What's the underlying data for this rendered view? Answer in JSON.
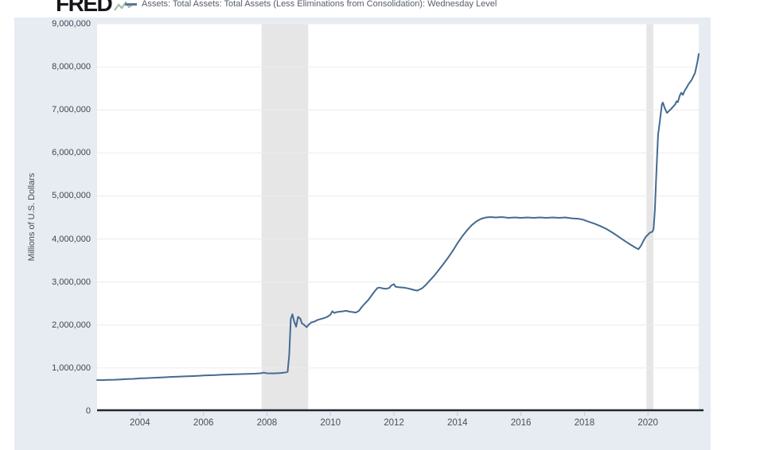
{
  "header": {
    "logo_text": "FRED",
    "legend_label": "Assets: Total Assets: Total Assets (Less Eliminations from Consolidation): Wednesday Level"
  },
  "colors": {
    "line": "#456a93",
    "legend_dash": "#5b7795",
    "recession_band": "#e6e6e6",
    "grid": "#ececec",
    "axis": "#24272b",
    "tick": "#c2c8cf",
    "chart_background": "#e7ecf3",
    "plot_background": "#ffffff",
    "logo": "#14161a"
  },
  "chart_data": {
    "type": "line",
    "title": "Assets: Total Assets: Total Assets (Less Eliminations from Consolidation): Wednesday Level",
    "xlabel": "",
    "ylabel": "Millions of U.S. Dollars",
    "xlim": [
      2002.65,
      2021.6
    ],
    "ylim": [
      0,
      9000000
    ],
    "x_ticks": [
      2004,
      2006,
      2008,
      2010,
      2012,
      2014,
      2016,
      2018,
      2020
    ],
    "y_ticks": [
      0,
      1000000,
      2000000,
      3000000,
      4000000,
      5000000,
      6000000,
      7000000,
      8000000,
      9000000
    ],
    "grid": "horizontal",
    "legend_position": "top",
    "recession_bands": [
      [
        2007.83,
        2009.3
      ],
      [
        2019.95,
        2020.17
      ]
    ],
    "series": [
      {
        "name": "Assets: Total Assets: Total Assets (Less Eliminations from Consolidation): Wednesday Level",
        "color": "#456a93",
        "points": [
          [
            2002.65,
            720000
          ],
          [
            2002.8,
            718000
          ],
          [
            2003.0,
            724000
          ],
          [
            2003.2,
            728000
          ],
          [
            2003.4,
            735000
          ],
          [
            2003.6,
            742000
          ],
          [
            2003.8,
            748000
          ],
          [
            2004.0,
            760000
          ],
          [
            2004.2,
            766000
          ],
          [
            2004.4,
            772000
          ],
          [
            2004.6,
            778000
          ],
          [
            2004.8,
            786000
          ],
          [
            2005.0,
            795000
          ],
          [
            2005.2,
            800000
          ],
          [
            2005.4,
            806000
          ],
          [
            2005.6,
            812000
          ],
          [
            2005.8,
            818000
          ],
          [
            2006.0,
            826000
          ],
          [
            2006.2,
            832000
          ],
          [
            2006.4,
            838000
          ],
          [
            2006.6,
            844000
          ],
          [
            2006.8,
            850000
          ],
          [
            2007.0,
            856000
          ],
          [
            2007.2,
            860000
          ],
          [
            2007.4,
            864000
          ],
          [
            2007.6,
            868000
          ],
          [
            2007.8,
            878000
          ],
          [
            2007.9,
            892000
          ],
          [
            2008.0,
            878000
          ],
          [
            2008.2,
            876000
          ],
          [
            2008.4,
            884000
          ],
          [
            2008.55,
            894000
          ],
          [
            2008.65,
            910000
          ],
          [
            2008.7,
            1300000
          ],
          [
            2008.75,
            2140000
          ],
          [
            2008.8,
            2250000
          ],
          [
            2008.86,
            2080000
          ],
          [
            2008.92,
            1960000
          ],
          [
            2008.98,
            2190000
          ],
          [
            2009.05,
            2150000
          ],
          [
            2009.1,
            2040000
          ],
          [
            2009.18,
            2000000
          ],
          [
            2009.25,
            1950000
          ],
          [
            2009.32,
            2010000
          ],
          [
            2009.4,
            2060000
          ],
          [
            2009.5,
            2080000
          ],
          [
            2009.6,
            2120000
          ],
          [
            2009.7,
            2140000
          ],
          [
            2009.8,
            2160000
          ],
          [
            2009.9,
            2190000
          ],
          [
            2010.0,
            2240000
          ],
          [
            2010.06,
            2320000
          ],
          [
            2010.12,
            2280000
          ],
          [
            2010.2,
            2300000
          ],
          [
            2010.3,
            2310000
          ],
          [
            2010.4,
            2320000
          ],
          [
            2010.5,
            2330000
          ],
          [
            2010.6,
            2310000
          ],
          [
            2010.7,
            2300000
          ],
          [
            2010.8,
            2290000
          ],
          [
            2010.9,
            2330000
          ],
          [
            2011.0,
            2430000
          ],
          [
            2011.1,
            2510000
          ],
          [
            2011.2,
            2590000
          ],
          [
            2011.3,
            2690000
          ],
          [
            2011.4,
            2790000
          ],
          [
            2011.48,
            2860000
          ],
          [
            2011.55,
            2870000
          ],
          [
            2011.65,
            2850000
          ],
          [
            2011.75,
            2840000
          ],
          [
            2011.85,
            2860000
          ],
          [
            2011.92,
            2920000
          ],
          [
            2012.0,
            2950000
          ],
          [
            2012.05,
            2890000
          ],
          [
            2012.15,
            2880000
          ],
          [
            2012.3,
            2870000
          ],
          [
            2012.45,
            2850000
          ],
          [
            2012.55,
            2830000
          ],
          [
            2012.65,
            2810000
          ],
          [
            2012.72,
            2800000
          ],
          [
            2012.8,
            2820000
          ],
          [
            2012.9,
            2860000
          ],
          [
            2013.0,
            2930000
          ],
          [
            2013.1,
            3010000
          ],
          [
            2013.25,
            3130000
          ],
          [
            2013.4,
            3270000
          ],
          [
            2013.55,
            3410000
          ],
          [
            2013.7,
            3560000
          ],
          [
            2013.85,
            3720000
          ],
          [
            2014.0,
            3900000
          ],
          [
            2014.15,
            4060000
          ],
          [
            2014.3,
            4200000
          ],
          [
            2014.45,
            4320000
          ],
          [
            2014.6,
            4410000
          ],
          [
            2014.75,
            4470000
          ],
          [
            2014.9,
            4500000
          ],
          [
            2015.05,
            4510000
          ],
          [
            2015.2,
            4500000
          ],
          [
            2015.4,
            4510000
          ],
          [
            2015.6,
            4490000
          ],
          [
            2015.8,
            4500000
          ],
          [
            2016.0,
            4490000
          ],
          [
            2016.2,
            4500000
          ],
          [
            2016.4,
            4490000
          ],
          [
            2016.6,
            4500000
          ],
          [
            2016.8,
            4490000
          ],
          [
            2017.0,
            4500000
          ],
          [
            2017.2,
            4490000
          ],
          [
            2017.4,
            4500000
          ],
          [
            2017.6,
            4480000
          ],
          [
            2017.8,
            4470000
          ],
          [
            2017.95,
            4450000
          ],
          [
            2018.1,
            4410000
          ],
          [
            2018.3,
            4360000
          ],
          [
            2018.5,
            4300000
          ],
          [
            2018.7,
            4230000
          ],
          [
            2018.9,
            4140000
          ],
          [
            2019.1,
            4040000
          ],
          [
            2019.3,
            3940000
          ],
          [
            2019.45,
            3870000
          ],
          [
            2019.6,
            3800000
          ],
          [
            2019.7,
            3760000
          ],
          [
            2019.78,
            3840000
          ],
          [
            2019.86,
            3960000
          ],
          [
            2019.93,
            4050000
          ],
          [
            2020.0,
            4100000
          ],
          [
            2020.07,
            4150000
          ],
          [
            2020.14,
            4170000
          ],
          [
            2020.18,
            4240000
          ],
          [
            2020.22,
            4680000
          ],
          [
            2020.27,
            5600000
          ],
          [
            2020.32,
            6420000
          ],
          [
            2020.38,
            6760000
          ],
          [
            2020.44,
            7130000
          ],
          [
            2020.47,
            7170000
          ],
          [
            2020.53,
            7040000
          ],
          [
            2020.6,
            6930000
          ],
          [
            2020.67,
            6980000
          ],
          [
            2020.74,
            7030000
          ],
          [
            2020.8,
            7080000
          ],
          [
            2020.86,
            7130000
          ],
          [
            2020.9,
            7200000
          ],
          [
            2020.94,
            7180000
          ],
          [
            2021.0,
            7330000
          ],
          [
            2021.05,
            7400000
          ],
          [
            2021.1,
            7350000
          ],
          [
            2021.16,
            7450000
          ],
          [
            2021.22,
            7520000
          ],
          [
            2021.28,
            7600000
          ],
          [
            2021.33,
            7650000
          ],
          [
            2021.38,
            7700000
          ],
          [
            2021.43,
            7780000
          ],
          [
            2021.48,
            7850000
          ],
          [
            2021.52,
            7980000
          ],
          [
            2021.56,
            8120000
          ],
          [
            2021.6,
            8300000
          ]
        ]
      }
    ]
  }
}
